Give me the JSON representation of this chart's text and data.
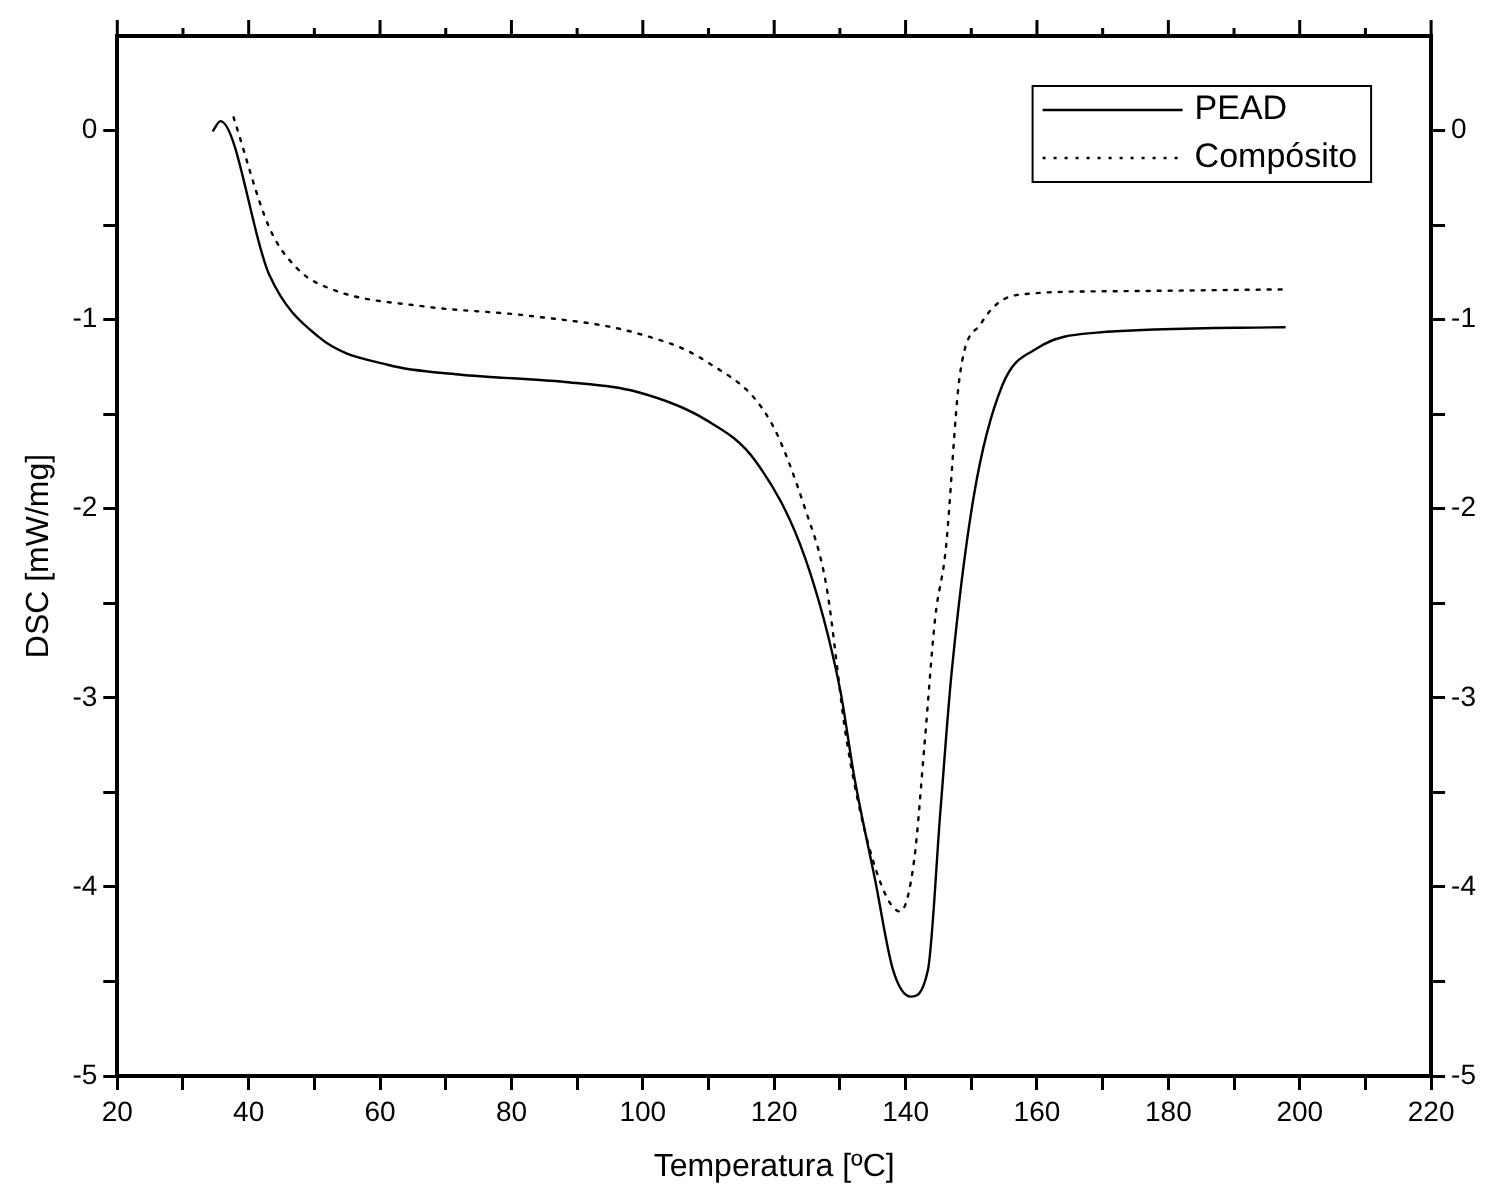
{
  "chart_data": {
    "type": "line",
    "xlabel": "Temperatura [ºC]",
    "ylabel": "DSC [mW/mg]",
    "xlim": [
      20,
      220
    ],
    "xticks": [
      20,
      {
        "value": 30,
        "label": null
      },
      40,
      {
        "value": 50,
        "label": null
      },
      60,
      {
        "value": 70,
        "label": null
      },
      80,
      {
        "value": 90,
        "label": null
      },
      100,
      {
        "value": 110,
        "label": null
      },
      120,
      {
        "value": 130,
        "label": null
      },
      140,
      {
        "value": 150,
        "label": null
      },
      160,
      {
        "value": 170,
        "label": null
      },
      180,
      {
        "value": 190,
        "label": null
      },
      200,
      {
        "value": 210,
        "label": null
      },
      220
    ],
    "ylim": [
      -5,
      0.5
    ],
    "yticks": [
      -5,
      {
        "value": -4.5,
        "label": null
      },
      -4,
      {
        "value": -3.5,
        "label": null
      },
      -3,
      {
        "value": -2.5,
        "label": null
      },
      -2,
      {
        "value": -1.5,
        "label": null
      },
      -1,
      {
        "value": -0.5,
        "label": null
      },
      0
    ],
    "y2lim": [
      -5,
      0.5
    ],
    "y2ticks": [
      -5,
      {
        "value": -4.5,
        "label": null
      },
      -4,
      {
        "value": -3.5,
        "label": null
      },
      -3,
      {
        "value": -2.5,
        "label": null
      },
      -2,
      {
        "value": -1.5,
        "label": null
      },
      -1,
      {
        "value": -0.5,
        "label": null
      },
      0
    ],
    "grid": false,
    "legend": "top right",
    "marker": "none",
    "series": [
      {
        "name": "PEAD",
        "color": "#000000",
        "line_style": "solid",
        "x": [
          34.6,
          35.7,
          43.1,
          50.6,
          61.3,
          72,
          88.2,
          98.9,
          109.6,
          117.2,
          124.7,
          130,
          132.2,
          135.4,
          138.1,
          140.8,
          143.4,
          145.3,
          147,
          150.4,
          154.7,
          160.1,
          168.7,
          197.7
        ],
        "values": [
          0,
          0.05,
          -0.76,
          -1.09,
          -1.24,
          -1.29,
          -1.33,
          -1.38,
          -1.53,
          -1.75,
          -2.26,
          -2.95,
          -3.42,
          -3.97,
          -4.44,
          -4.58,
          -4.44,
          -3.6,
          -2.87,
          -1.93,
          -1.35,
          -1.15,
          -1.07,
          -1.04
        ]
      },
      {
        "name": "Compósito",
        "color": "#000000",
        "line_style": "dotted",
        "x": [
          37.7,
          43.1,
          47.4,
          52.7,
          66.7,
          82.8,
          98.9,
          109.6,
          119.3,
          124.7,
          127.9,
          131.1,
          135.4,
          139.2,
          141.3,
          142.9,
          144.5,
          146.1,
          148.2,
          151.5,
          156.9,
          170.8,
          197.7
        ],
        "values": [
          0.07,
          -0.51,
          -0.73,
          -0.84,
          -0.93,
          -0.98,
          -1.07,
          -1.22,
          -1.53,
          -2,
          -2.4,
          -3.24,
          -3.9,
          -4.13,
          -3.86,
          -3.24,
          -2.58,
          -2.22,
          -1.31,
          -1.02,
          -0.87,
          -0.85,
          -0.84
        ]
      }
    ]
  }
}
